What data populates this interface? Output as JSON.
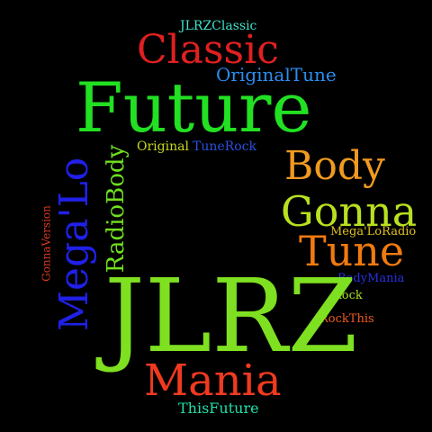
{
  "cloud": {
    "words": {
      "jlrzclassic": {
        "text": "JLRZClassic",
        "color": "#40e0c8"
      },
      "classic": {
        "text": "Classic",
        "color": "#e02020"
      },
      "originaltune": {
        "text": "OriginalTune",
        "color": "#2a8ef0"
      },
      "future": {
        "text": "Future",
        "color": "#22e022"
      },
      "original": {
        "text": "Original",
        "color": "#c8d820"
      },
      "tunerock": {
        "text": "TuneRock",
        "color": "#2a50e0"
      },
      "body": {
        "text": "Body",
        "color": "#f09a20"
      },
      "gonna": {
        "text": "Gonna",
        "color": "#b8e020"
      },
      "tune": {
        "text": "Tune",
        "color": "#f07a10"
      },
      "megaloradio": {
        "text": "Mega'LoRadio",
        "color": "#e0c020"
      },
      "bodymania": {
        "text": "BodyMania",
        "color": "#2a30e0"
      },
      "rock": {
        "text": "Rock",
        "color": "#a8e020"
      },
      "rockthis": {
        "text": "RockThis",
        "color": "#f05a20"
      },
      "jlrz": {
        "text": "JLRZ",
        "color": "#7ee020"
      },
      "mania": {
        "text": "Mania",
        "color": "#f03a20"
      },
      "thisfuture": {
        "text": "ThisFuture",
        "color": "#20e0a8"
      },
      "megalo": {
        "text": "Mega'Lo",
        "color": "#2020e8"
      },
      "radiobody": {
        "text": "RadioBody",
        "color": "#70e020"
      },
      "gonnaversion": {
        "text": "GonnaVersion",
        "color": "#e03a20"
      }
    }
  }
}
